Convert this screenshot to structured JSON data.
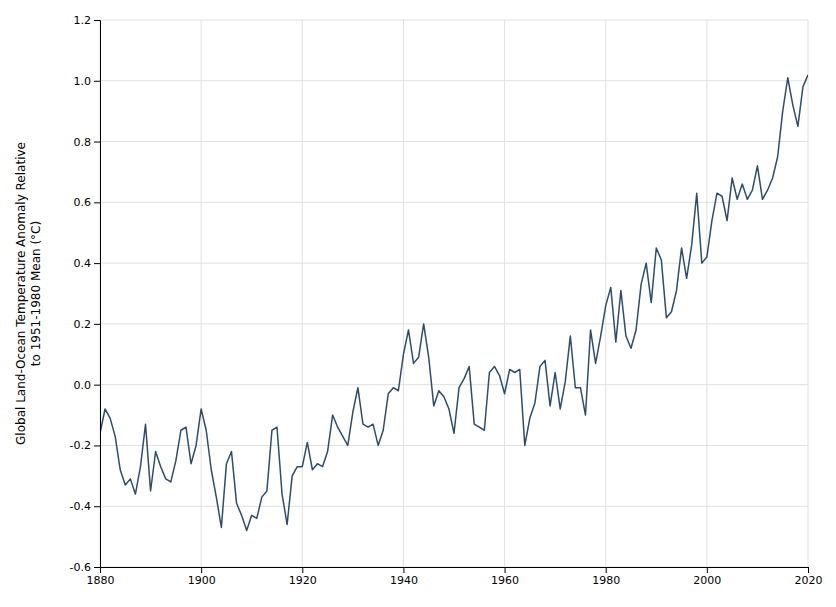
{
  "chart_data": {
    "type": "line",
    "ylabel": "Global Land-Ocean Temperature Anomaly Relative\nto 1951-1980 Mean (°C)",
    "color": "#2e4d6b",
    "grid": true,
    "xlim": [
      1880,
      2020
    ],
    "ylim": [
      -0.6,
      1.2
    ],
    "xticks": [
      1880,
      1900,
      1920,
      1940,
      1960,
      1980,
      2000,
      2020
    ],
    "yticks": [
      -0.6,
      -0.4,
      -0.2,
      {
        "value": 0,
        "label": "0.0"
      },
      0.2,
      0.4,
      0.6,
      0.8,
      {
        "value": 1,
        "label": "1.0"
      },
      1.2
    ],
    "x": [
      1880,
      1881,
      1882,
      1883,
      1884,
      1885,
      1886,
      1887,
      1888,
      1889,
      1890,
      1891,
      1892,
      1893,
      1894,
      1895,
      1896,
      1897,
      1898,
      1899,
      1900,
      1901,
      1902,
      1903,
      1904,
      1905,
      1906,
      1907,
      1908,
      1909,
      1910,
      1911,
      1912,
      1913,
      1914,
      1915,
      1916,
      1917,
      1918,
      1919,
      1920,
      1921,
      1922,
      1923,
      1924,
      1925,
      1926,
      1927,
      1928,
      1929,
      1930,
      1931,
      1932,
      1933,
      1934,
      1935,
      1936,
      1937,
      1938,
      1939,
      1940,
      1941,
      1942,
      1943,
      1944,
      1945,
      1946,
      1947,
      1948,
      1949,
      1950,
      1951,
      1952,
      1953,
      1954,
      1955,
      1956,
      1957,
      1958,
      1959,
      1960,
      1961,
      1962,
      1963,
      1964,
      1965,
      1966,
      1967,
      1968,
      1969,
      1970,
      1971,
      1972,
      1973,
      1974,
      1975,
      1976,
      1977,
      1978,
      1979,
      1980,
      1981,
      1982,
      1983,
      1984,
      1985,
      1986,
      1987,
      1988,
      1989,
      1990,
      1991,
      1992,
      1993,
      1994,
      1995,
      1996,
      1997,
      1998,
      1999,
      2000,
      2001,
      2002,
      2003,
      2004,
      2005,
      2006,
      2007,
      2008,
      2009,
      2010,
      2011,
      2012,
      2013,
      2014,
      2015,
      2016,
      2017,
      2018,
      2019,
      2020
    ],
    "values": [
      -0.16,
      -0.08,
      -0.11,
      -0.17,
      -0.28,
      -0.33,
      -0.31,
      -0.36,
      -0.27,
      -0.13,
      -0.35,
      -0.22,
      -0.27,
      -0.31,
      -0.32,
      -0.25,
      -0.15,
      -0.14,
      -0.26,
      -0.2,
      -0.08,
      -0.15,
      -0.28,
      -0.37,
      -0.47,
      -0.26,
      -0.22,
      -0.39,
      -0.43,
      -0.48,
      -0.43,
      -0.44,
      -0.37,
      -0.35,
      -0.15,
      -0.14,
      -0.36,
      -0.46,
      -0.3,
      -0.27,
      -0.27,
      -0.19,
      -0.28,
      -0.26,
      -0.27,
      -0.22,
      -0.1,
      -0.14,
      -0.17,
      -0.2,
      -0.09,
      -0.01,
      -0.13,
      -0.14,
      -0.13,
      -0.2,
      -0.15,
      -0.03,
      -0.01,
      -0.02,
      0.1,
      0.18,
      0.07,
      0.09,
      0.2,
      0.09,
      -0.07,
      -0.02,
      -0.04,
      -0.08,
      -0.16,
      -0.01,
      0.02,
      0.06,
      -0.13,
      -0.14,
      -0.15,
      0.04,
      0.06,
      0.03,
      -0.03,
      0.05,
      0.04,
      0.05,
      -0.2,
      -0.11,
      -0.06,
      0.06,
      0.08,
      -0.07,
      0.04,
      -0.08,
      0.01,
      0.16,
      -0.01,
      -0.01,
      -0.1,
      0.18,
      0.07,
      0.16,
      0.26,
      0.32,
      0.14,
      0.31,
      0.16,
      0.12,
      0.18,
      0.33,
      0.4,
      0.27,
      0.45,
      0.41,
      0.22,
      0.24,
      0.31,
      0.45,
      0.35,
      0.46,
      0.63,
      0.4,
      0.42,
      0.54,
      0.63,
      0.62,
      0.54,
      0.68,
      0.61,
      0.66,
      0.61,
      0.64,
      0.72,
      0.61,
      0.64,
      0.68,
      0.75,
      0.9,
      1.01,
      0.92,
      0.85,
      0.98,
      1.02
    ]
  }
}
